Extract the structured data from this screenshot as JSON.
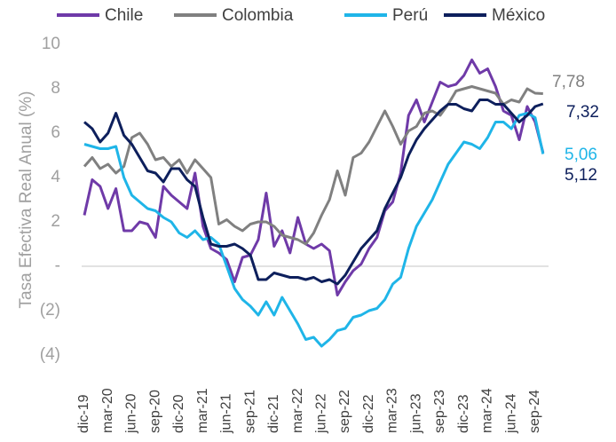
{
  "chart_data": {
    "type": "line",
    "ylabel": "Tasa Efectiva Real Anual (%)",
    "categories": [
      "dic-19",
      null,
      null,
      "mar-20",
      null,
      null,
      "jun-20",
      null,
      null,
      "sep-20",
      null,
      null,
      "dic-20",
      null,
      null,
      "mar-21",
      null,
      null,
      "jun-21",
      null,
      null,
      "sep-21",
      null,
      null,
      "dic-21",
      null,
      null,
      "mar-22",
      null,
      null,
      "jun-22",
      null,
      null,
      "sep-22",
      null,
      null,
      "dic-22",
      null,
      null,
      "mar-23",
      null,
      null,
      "jun-23",
      null,
      null,
      "sep-23",
      null,
      null,
      "dic-23",
      null,
      null,
      "mar-24",
      null,
      null,
      "jun-24",
      null,
      null,
      "sep-24",
      null
    ],
    "ylim": [
      -4,
      10
    ],
    "yticks": [
      10,
      8,
      6,
      4,
      2,
      {
        "value": 0,
        "label": "-"
      },
      {
        "value": -2,
        "label": "(2)"
      },
      {
        "value": -4,
        "label": "(4)"
      }
    ],
    "zero_line": true,
    "legend": "top",
    "series": [
      {
        "name": "Chile",
        "color": "#6f3aa8",
        "last_label": "5,12",
        "label_color": "#0d1f5c",
        "values": [
          2.3,
          3.9,
          3.6,
          2.6,
          3.5,
          1.6,
          1.6,
          2.0,
          1.9,
          1.3,
          3.6,
          3.2,
          2.9,
          2.6,
          4.2,
          1.8,
          0.8,
          0.6,
          0.3,
          -0.7,
          0.4,
          0.5,
          1.2,
          3.3,
          0.9,
          1.6,
          0.6,
          2.2,
          1.0,
          0.8,
          1.0,
          0.7,
          -1.3,
          -0.7,
          -0.2,
          0.1,
          0.8,
          1.3,
          2.5,
          2.9,
          4.2,
          6.8,
          7.5,
          6.5,
          7.4,
          8.3,
          8.1,
          8.2,
          8.6,
          9.3,
          8.7,
          8.9,
          8.1,
          7.0,
          6.8,
          5.7,
          7.2,
          6.5,
          5.12
        ]
      },
      {
        "name": "Colombia",
        "color": "#808080",
        "last_label": "7,78",
        "label_color": "#808080",
        "values": [
          4.5,
          4.9,
          4.4,
          4.6,
          4.2,
          4.5,
          5.8,
          6.0,
          5.5,
          4.8,
          4.9,
          4.5,
          4.8,
          4.2,
          4.8,
          4.4,
          4.0,
          1.9,
          2.1,
          1.8,
          1.6,
          1.9,
          2.0,
          2.0,
          1.8,
          1.4,
          1.3,
          1.2,
          1.0,
          1.5,
          2.3,
          3.0,
          4.3,
          3.2,
          4.9,
          5.1,
          5.6,
          6.3,
          7.0,
          6.3,
          5.5,
          6.1,
          6.3,
          6.9,
          7.0,
          6.8,
          7.3,
          7.9,
          8.0,
          8.1,
          8.0,
          7.9,
          7.8,
          7.3,
          7.5,
          7.4,
          8.0,
          7.8,
          7.78
        ]
      },
      {
        "name": "Perú",
        "color": "#1fb5e8",
        "last_label": "5,06",
        "label_color": "#1fb5e8",
        "values": [
          5.5,
          5.4,
          5.3,
          5.3,
          5.4,
          4.0,
          3.2,
          2.9,
          2.6,
          2.5,
          2.2,
          2.0,
          1.5,
          1.3,
          1.6,
          1.2,
          1.3,
          1.0,
          0.0,
          -1.0,
          -1.5,
          -1.8,
          -2.2,
          -1.6,
          -2.2,
          -1.4,
          -2.0,
          -2.6,
          -3.3,
          -3.2,
          -3.6,
          -3.3,
          -2.9,
          -2.8,
          -2.3,
          -2.2,
          -2.0,
          -1.9,
          -1.5,
          -0.8,
          -0.5,
          0.8,
          1.8,
          2.4,
          3.0,
          3.8,
          4.6,
          5.1,
          5.6,
          5.5,
          5.3,
          5.8,
          6.5,
          6.5,
          6.2,
          6.8,
          6.9,
          6.7,
          5.06
        ]
      },
      {
        "name": "México",
        "color": "#0d1f5c",
        "last_label": "7,32",
        "label_color": "#0d1f5c",
        "values": [
          6.5,
          6.2,
          5.6,
          6.0,
          6.9,
          5.9,
          5.5,
          4.9,
          4.3,
          4.2,
          3.8,
          4.4,
          4.4,
          3.9,
          3.6,
          2.2,
          1.0,
          0.9,
          0.9,
          1.0,
          0.8,
          0.5,
          -0.6,
          -0.6,
          -0.3,
          -0.4,
          -0.5,
          -0.5,
          -0.6,
          -0.5,
          -0.7,
          -0.6,
          -0.8,
          -0.4,
          0.2,
          0.8,
          1.2,
          1.6,
          2.6,
          3.3,
          4.0,
          5.0,
          5.7,
          6.2,
          6.6,
          7.0,
          7.3,
          7.3,
          7.1,
          7.0,
          7.5,
          7.5,
          7.3,
          7.3,
          6.9,
          6.5,
          6.8,
          7.2,
          7.32
        ]
      }
    ]
  }
}
